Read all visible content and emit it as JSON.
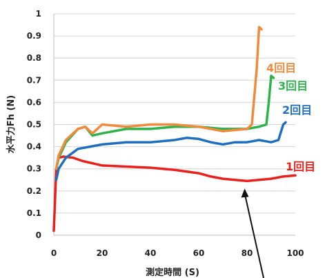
{
  "chart_data": {
    "type": "line",
    "xlabel": "測定時間 (S)",
    "ylabel": "水平力Fh (N)",
    "xlim": [
      0,
      100
    ],
    "ylim": [
      0,
      1
    ],
    "x_ticks": [
      "0",
      "20",
      "40",
      "60",
      "80",
      "100"
    ],
    "y_ticks": [
      "0",
      "0.1",
      "0.2",
      "0.3",
      "0.4",
      "0.5",
      "0.6",
      "0.7",
      "0.8",
      "0.9",
      "1"
    ],
    "grid": "horizontal",
    "annotation": "arrow pointing to the minimum of the red series",
    "series": [
      {
        "name": "1回目",
        "color": "#e8211c",
        "x": [
          0,
          1,
          2,
          4,
          8,
          12,
          20,
          30,
          40,
          50,
          60,
          65,
          70,
          75,
          80,
          85,
          90,
          95,
          100
        ],
        "y": [
          0.02,
          0.3,
          0.35,
          0.355,
          0.35,
          0.335,
          0.315,
          0.31,
          0.305,
          0.295,
          0.28,
          0.265,
          0.255,
          0.25,
          0.245,
          0.25,
          0.255,
          0.265,
          0.27
        ]
      },
      {
        "name": "2回目",
        "color": "#1f6fbf",
        "x": [
          1,
          2,
          5,
          10,
          15,
          20,
          30,
          40,
          50,
          55,
          60,
          65,
          70,
          75,
          80,
          85,
          90,
          93,
          95,
          96
        ],
        "y": [
          0.25,
          0.3,
          0.35,
          0.39,
          0.4,
          0.41,
          0.42,
          0.42,
          0.43,
          0.44,
          0.435,
          0.42,
          0.41,
          0.42,
          0.42,
          0.43,
          0.42,
          0.43,
          0.5,
          0.51
        ]
      },
      {
        "name": "3回目",
        "color": "#2db34a",
        "x": [
          1,
          2,
          5,
          10,
          13,
          16,
          20,
          30,
          40,
          50,
          60,
          70,
          80,
          85,
          88,
          89,
          90,
          91
        ],
        "y": [
          0.3,
          0.35,
          0.42,
          0.48,
          0.49,
          0.45,
          0.46,
          0.48,
          0.48,
          0.49,
          0.49,
          0.48,
          0.48,
          0.49,
          0.5,
          0.6,
          0.72,
          0.71
        ]
      },
      {
        "name": "4回目",
        "color": "#f08a3c",
        "x": [
          1,
          2,
          5,
          10,
          13,
          16,
          20,
          30,
          40,
          50,
          60,
          70,
          80,
          82,
          84,
          85,
          86
        ],
        "y": [
          0.3,
          0.36,
          0.43,
          0.48,
          0.49,
          0.46,
          0.5,
          0.49,
          0.5,
          0.5,
          0.49,
          0.47,
          0.48,
          0.5,
          0.75,
          0.94,
          0.93
        ]
      }
    ]
  }
}
